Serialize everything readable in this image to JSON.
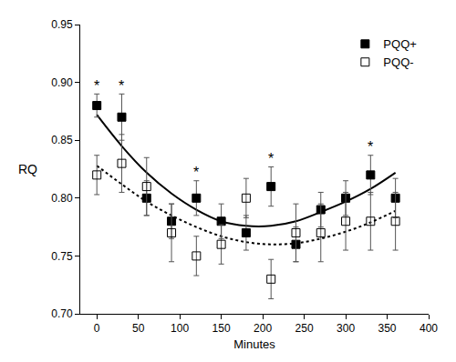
{
  "chart_data": {
    "type": "scatter",
    "xlabel": "Minutes",
    "ylabel": "RQ",
    "x": [
      0,
      30,
      60,
      90,
      120,
      150,
      180,
      210,
      240,
      270,
      300,
      330,
      360
    ],
    "series": [
      {
        "name": "PQQ+",
        "color": "#000000",
        "marker": "square",
        "line_style": "solid",
        "values": [
          0.88,
          0.87,
          0.8,
          0.78,
          0.8,
          0.78,
          0.77,
          0.81,
          0.76,
          0.79,
          0.8,
          0.82,
          0.8
        ],
        "error": [
          0.01,
          0.02,
          0.015,
          0.015,
          0.015,
          0.015,
          0.015,
          0.017,
          0.015,
          0.015,
          0.015,
          0.017,
          0.017
        ],
        "fit_values": [
          0.872,
          0.845,
          0.822,
          0.804,
          0.79,
          0.78,
          0.776,
          0.776,
          0.78,
          0.788,
          0.797,
          0.808,
          0.822
        ]
      },
      {
        "name": "PQQ-",
        "color": "#000000",
        "marker": "square-open",
        "line_style": "dot",
        "values": [
          0.82,
          0.83,
          0.81,
          0.77,
          0.75,
          0.76,
          0.8,
          0.73,
          0.77,
          0.77,
          0.78,
          0.78,
          0.78
        ],
        "error": [
          0.017,
          0.025,
          0.025,
          0.025,
          0.017,
          0.017,
          0.017,
          0.017,
          0.025,
          0.025,
          0.025,
          0.025,
          0.025
        ],
        "fit_values": [
          0.828,
          0.812,
          0.797,
          0.785,
          0.775,
          0.767,
          0.762,
          0.76,
          0.761,
          0.765,
          0.771,
          0.779,
          0.789
        ]
      }
    ],
    "annotations": [
      {
        "x": 0,
        "y": 0.897,
        "text": "*"
      },
      {
        "x": 30,
        "y": 0.897,
        "text": "*"
      },
      {
        "x": 120,
        "y": 0.822,
        "text": "*"
      },
      {
        "x": 210,
        "y": 0.834,
        "text": "*"
      },
      {
        "x": 330,
        "y": 0.844,
        "text": "*"
      }
    ],
    "xlim": [
      -20,
      400
    ],
    "xticks": [
      0,
      50,
      100,
      150,
      200,
      250,
      300,
      350,
      400
    ],
    "ylim": [
      0.7,
      0.95
    ],
    "yticks": [
      {
        "value": 0.7,
        "label": "0.70"
      },
      {
        "value": 0.75,
        "label": "0.75"
      },
      {
        "value": 0.8,
        "label": "0.80"
      },
      {
        "value": 0.85,
        "label": "0.85"
      },
      {
        "value": 0.9,
        "label": "0.90"
      },
      {
        "value": 0.95,
        "label": "0.95"
      }
    ],
    "grid": false,
    "legend": "top right"
  }
}
